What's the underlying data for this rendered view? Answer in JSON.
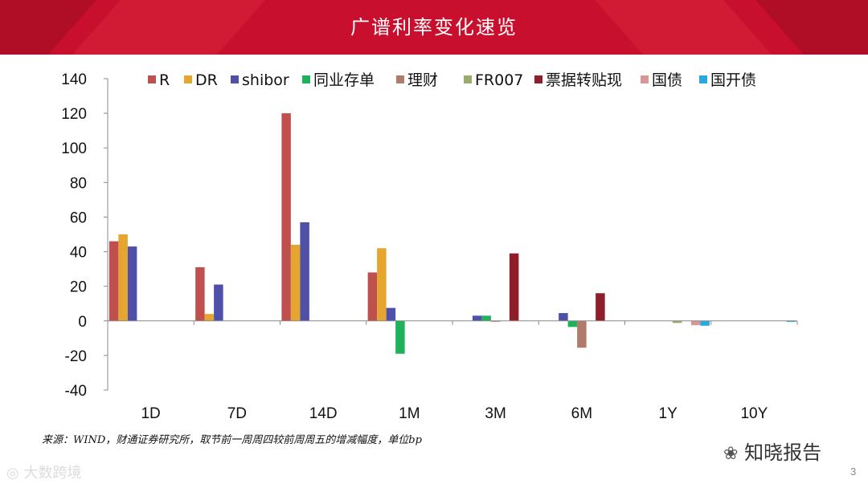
{
  "header": {
    "title": "广谱利率变化速览"
  },
  "chart_data": {
    "type": "bar",
    "categories": [
      "1D",
      "7D",
      "14D",
      "1M",
      "3M",
      "6M",
      "1Y",
      "10Y"
    ],
    "ylim": [
      -40,
      140
    ],
    "yticks": [
      140,
      120,
      100,
      80,
      60,
      40,
      20,
      0,
      -20,
      -40
    ],
    "legend_position": "top",
    "grid": false,
    "series": [
      {
        "name": "R",
        "color": "#c0504d",
        "values": [
          46,
          31,
          120,
          28,
          0,
          0,
          0,
          0
        ]
      },
      {
        "name": "DR",
        "color": "#e6a52e",
        "values": [
          50,
          4,
          44,
          42,
          0,
          0,
          0,
          0
        ]
      },
      {
        "name": "shibor",
        "color": "#4f50a8",
        "values": [
          43,
          21,
          57,
          7.5,
          3,
          4.5,
          0,
          0
        ]
      },
      {
        "name": "同业存单",
        "color": "#1fb25a",
        "values": [
          0,
          0,
          0,
          -19,
          3,
          -3.5,
          0,
          0
        ]
      },
      {
        "name": "理财",
        "color": "#b07b6b",
        "values": [
          0,
          0,
          0,
          0,
          -0.5,
          -15.5,
          0,
          0
        ]
      },
      {
        "name": "FR007",
        "color": "#9aac6c",
        "values": [
          0,
          0,
          0,
          0,
          0,
          0,
          -1.2,
          0
        ]
      },
      {
        "name": "票据转贴现",
        "color": "#8e1f2a",
        "values": [
          0,
          0,
          0,
          0,
          39,
          16,
          0,
          0
        ]
      },
      {
        "name": "国债",
        "color": "#d99694",
        "values": [
          0,
          0,
          0,
          0,
          0,
          0,
          -2.5,
          0
        ]
      },
      {
        "name": "国开债",
        "color": "#29a8e0",
        "values": [
          0,
          0,
          0,
          0,
          0,
          0,
          -2.8,
          -0.6
        ]
      }
    ]
  },
  "footer": {
    "source": "来源：WIND，财通证券研究所，取节前一周周四较前周周五的增减幅度，单位bp",
    "watermark_right": "知晓报告",
    "watermark_left": "大数跨境",
    "page_number": "3"
  }
}
